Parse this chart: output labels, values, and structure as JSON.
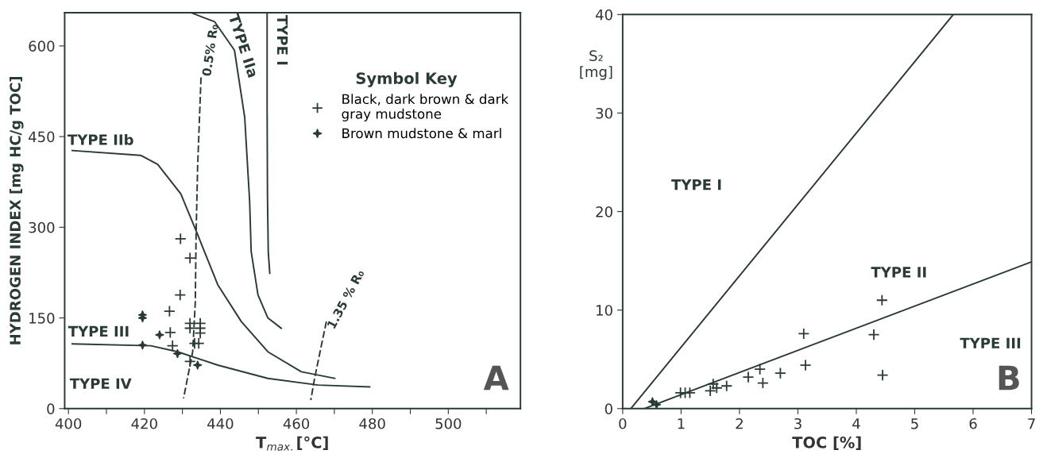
{
  "chart_data": [
    {
      "type": "scatter",
      "xlabel": "T$_{max.}$[°C]",
      "ylabel": "HYDROGEN INDEX [mg HC/g TOC]",
      "legend_title": "Symbol Key",
      "legend": "top right",
      "grid": false,
      "xlim": [
        399,
        519
      ],
      "ylim": [
        0,
        655
      ],
      "xticks": [
        400,
        {
          "value": 410,
          "label": null
        },
        420,
        {
          "value": 430,
          "label": null
        },
        440,
        {
          "value": 450,
          "label": null
        },
        460,
        {
          "value": 470,
          "label": null
        },
        480,
        {
          "value": 490,
          "label": null
        },
        500,
        {
          "value": 510,
          "label": null
        }
      ],
      "yticks": [
        0,
        150,
        300,
        450,
        600
      ],
      "series": [
        {
          "name": "Black, dark brown & dark\ngray mudstone",
          "type": "scatter",
          "marker": "cross",
          "color": "#2a3a35",
          "x": [
            429.5,
            432.0,
            429.4,
            426.6,
            426.8,
            427.4,
            432.0,
            432.0,
            434.7,
            434.7,
            434.7,
            433.2,
            434.3,
            432.0
          ],
          "values": [
            281,
            249,
            188,
            161,
            126,
            104,
            141,
            133,
            141,
            133,
            125,
            108,
            108,
            78
          ]
        },
        {
          "name": "Brown mudstone & marl",
          "type": "scatter",
          "marker": "star",
          "color": "#2a3a35",
          "x": [
            419.5,
            419.5,
            419.5,
            424.0,
            428.7,
            434.0
          ],
          "values": [
            155,
            150,
            105,
            122,
            91,
            72
          ]
        },
        {
          "type": "line",
          "line_style": "solid",
          "color": "#2a3a35",
          "x": [
            452.3,
            452.3,
            452.4,
            452.6,
            453.0
          ],
          "values": [
            655,
            500,
            350,
            260,
            224
          ]
        },
        {
          "type": "line",
          "line_style": "solid",
          "color": "#2a3a35",
          "x": [
            432.3,
            438.5,
            443.7,
            446.4,
            447.7,
            448.1,
            449.9,
            452.5,
            456.0
          ],
          "values": [
            655,
            640,
            593,
            482,
            343,
            260,
            188,
            150,
            133
          ]
        },
        {
          "type": "line",
          "line_style": "solid",
          "color": "#2a3a35",
          "x": [
            401,
            419,
            423.5,
            429.6,
            434,
            439.3,
            445.5,
            452.5,
            461.3,
            470.1
          ],
          "values": [
            427,
            419,
            404,
            355,
            288,
            205,
            144,
            94,
            61,
            50
          ]
        },
        {
          "type": "line",
          "line_style": "solid",
          "color": "#2a3a35",
          "x": [
            401,
            421.7,
            428.8,
            439.3,
            452.5,
            465.7,
            479.3
          ],
          "values": [
            107,
            104,
            94,
            72,
            50,
            39,
            36
          ]
        },
        {
          "type": "line",
          "line_style": "dashed",
          "color": "#2a3a35",
          "x": [
            434.9,
            434.0,
            433.6,
            433.4,
            432.7,
            430.3
          ],
          "values": [
            548,
            399,
            288,
            177,
            94,
            17
          ]
        },
        {
          "type": "line",
          "line_style": "dashed",
          "color": "#2a3a35",
          "x": [
            467.9,
            466.6,
            464.8,
            463.8
          ],
          "values": [
            144,
            105,
            50,
            14
          ]
        }
      ],
      "annotations": [
        "TYPE IIb",
        "TYPE IIa",
        "TYPE I",
        "TYPE III",
        "TYPE IV",
        "0.5% R₀",
        "1.35 % R₀",
        "A"
      ]
    },
    {
      "type": "scatter",
      "xlabel": "TOC [%]",
      "ylabel": "S₂\n[mg]",
      "grid": false,
      "xlim": [
        0,
        7
      ],
      "ylim": [
        0,
        40
      ],
      "xticks": [
        0,
        1,
        2,
        3,
        4,
        5,
        6,
        7
      ],
      "yticks": [
        0,
        10,
        20,
        30,
        40
      ],
      "series": [
        {
          "type": "scatter",
          "marker": "cross",
          "color": "#2a3a35",
          "x": [
            4.44,
            3.1,
            4.3,
            3.13,
            4.45,
            2.7,
            2.35,
            2.15,
            2.4,
            1.78,
            1.61,
            1.55,
            1.5,
            1.15,
            1.07,
            0.99
          ],
          "values": [
            11.0,
            7.6,
            7.5,
            4.4,
            3.4,
            3.6,
            4.0,
            3.2,
            2.6,
            2.3,
            2.1,
            2.5,
            1.8,
            1.6,
            1.6,
            1.6
          ]
        },
        {
          "type": "scatter",
          "marker": "star",
          "color": "#2a3a35",
          "x": [
            0.51,
            0.58
          ],
          "values": [
            0.7,
            0.4
          ]
        },
        {
          "type": "line",
          "line_style": "solid",
          "color": "#2a3a35",
          "x": [
            0.14,
            5.66
          ],
          "values": [
            0,
            40
          ]
        },
        {
          "type": "line",
          "line_style": "solid",
          "color": "#2a3a35",
          "x": [
            0.37,
            7.0
          ],
          "values": [
            0,
            14.9
          ]
        }
      ],
      "annotations": [
        "TYPE I",
        "TYPE II",
        "TYPE III",
        "B"
      ]
    }
  ]
}
